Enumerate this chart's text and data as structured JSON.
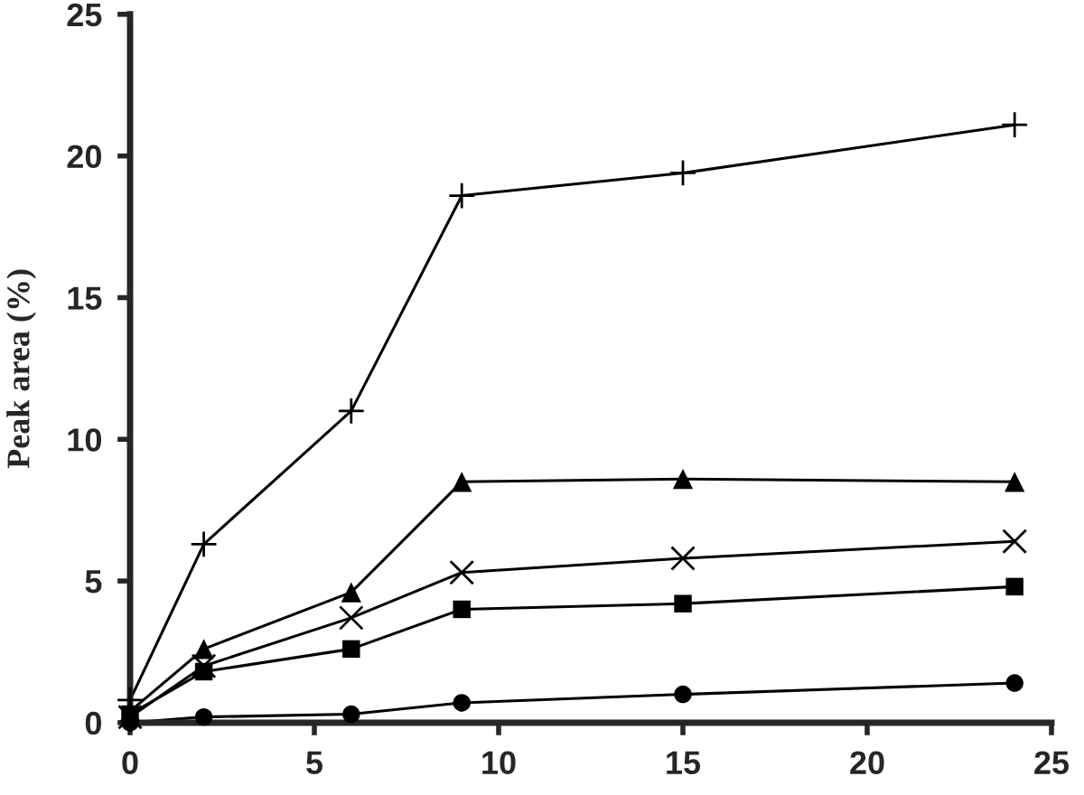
{
  "chart_data": {
    "type": "line",
    "ylabel": "Peak area (%)",
    "x": [
      0,
      2,
      6,
      9,
      15,
      24
    ],
    "series": [
      {
        "color": "#000000",
        "marker": "plus",
        "values": [
          0.8,
          6.3,
          11.0,
          18.6,
          19.4,
          21.1
        ]
      },
      {
        "color": "#000000",
        "marker": "triangle",
        "values": [
          0.4,
          2.6,
          4.6,
          8.5,
          8.6,
          8.5
        ]
      },
      {
        "color": "#000000",
        "marker": "cross",
        "values": [
          0.2,
          2.0,
          3.7,
          5.3,
          5.8,
          6.4
        ]
      },
      {
        "color": "#000000",
        "marker": "square",
        "values": [
          0.3,
          1.8,
          2.6,
          4.0,
          4.2,
          4.8
        ]
      },
      {
        "color": "#000000",
        "marker": "circle",
        "values": [
          0.0,
          0.2,
          0.3,
          0.7,
          1.0,
          1.4
        ]
      }
    ],
    "xlim": [
      0,
      25
    ],
    "xticks": [
      0,
      5,
      10,
      15,
      20,
      25
    ],
    "ylim": [
      0,
      25
    ],
    "yticks": [
      0,
      5,
      10,
      15,
      20,
      25
    ],
    "grid": false,
    "legend": false
  }
}
